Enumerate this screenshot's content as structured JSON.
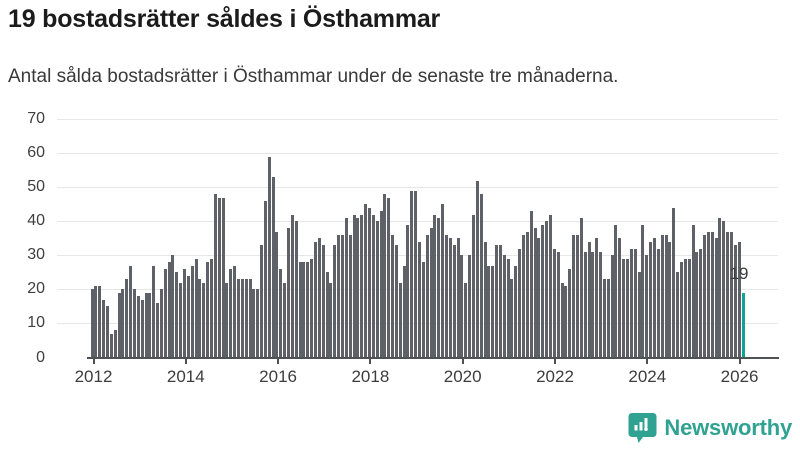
{
  "header": {
    "title": "19 bostadsrätter såldes i Östhammar",
    "subtitle": "Antal sålda bostadsrätter i Östhammar under de senaste tre månaderna."
  },
  "chart_data": {
    "type": "bar",
    "title": "19 bostadsrätter såldes i Östhammar",
    "subtitle": "Antal sålda bostadsrätter i Östhammar under de senaste tre månaderna.",
    "x_period": {
      "start": "2012-01",
      "end": "2026-02",
      "frequency": "monthly"
    },
    "values": [
      20,
      21,
      21,
      17,
      15,
      7,
      8,
      19,
      20,
      23,
      27,
      20,
      18,
      17,
      19,
      19,
      27,
      16,
      20,
      26,
      28,
      30,
      25,
      22,
      26,
      24,
      27,
      29,
      23,
      22,
      28,
      29,
      48,
      47,
      47,
      22,
      26,
      27,
      23,
      23,
      23,
      23,
      20,
      20,
      33,
      46,
      59,
      53,
      37,
      26,
      22,
      38,
      42,
      40,
      28,
      28,
      28,
      29,
      34,
      35,
      33,
      25,
      22,
      33,
      36,
      36,
      41,
      36,
      42,
      41,
      42,
      45,
      44,
      42,
      40,
      43,
      48,
      47,
      36,
      33,
      22,
      27,
      39,
      49,
      49,
      34,
      28,
      36,
      38,
      42,
      41,
      45,
      36,
      35,
      33,
      35,
      30,
      22,
      30,
      42,
      52,
      48,
      34,
      27,
      27,
      33,
      33,
      30,
      29,
      23,
      27,
      32,
      36,
      37,
      43,
      38,
      35,
      39,
      40,
      42,
      32,
      31,
      22,
      21,
      26,
      36,
      36,
      41,
      31,
      34,
      31,
      35,
      31,
      23,
      23,
      30,
      39,
      35,
      29,
      29,
      32,
      32,
      25,
      39,
      30,
      34,
      35,
      32,
      36,
      36,
      34,
      44,
      25,
      28,
      29,
      29,
      39,
      31,
      32,
      36,
      37,
      37,
      35,
      41,
      40,
      37,
      37,
      33,
      34,
      19
    ],
    "highlight": {
      "index_from_end": 1,
      "value": 19,
      "label": "19"
    },
    "ylim": [
      0,
      70
    ],
    "yticks": [
      0,
      10,
      20,
      30,
      40,
      50,
      60,
      70
    ],
    "xticks": [
      2012,
      2014,
      2016,
      2018,
      2020,
      2022,
      2024,
      2026
    ],
    "grid": true,
    "legend": "none",
    "bar_color": "#5e6167",
    "highlight_color": "#10a19b"
  },
  "annotation": {
    "text": "19"
  },
  "logo": {
    "text": "Newsworthy",
    "color": "#2fa292",
    "icon": "newsworthy-speech-bubble-barchart-icon"
  }
}
